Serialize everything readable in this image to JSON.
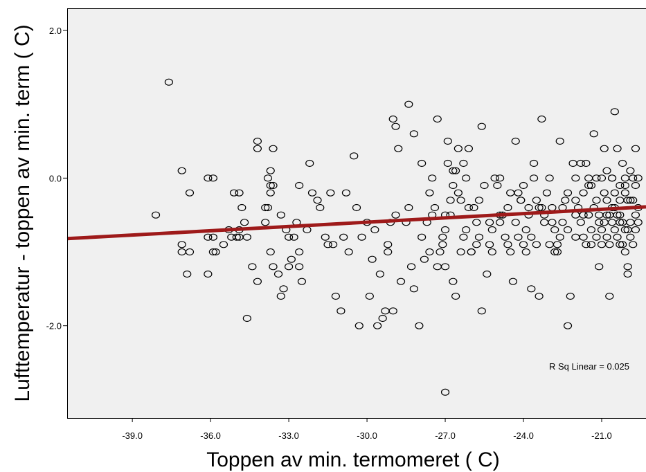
{
  "chart_data": {
    "type": "scatter",
    "xlabel": "Toppen av min. termomeret ( C)",
    "ylabel": "Lufttemperatur - toppen av min. term ( C)",
    "xlim": [
      -41.5,
      -19.3
    ],
    "ylim": [
      -3.25,
      2.3
    ],
    "x_ticks": [
      -39.0,
      -36.0,
      -33.0,
      -30.0,
      -27.0,
      -24.0,
      -21.0
    ],
    "y_ticks": [
      2.0,
      0.0,
      -2.0
    ],
    "x_tick_labels": [
      "-39.0",
      "-36.0",
      "-33.0",
      "-30.0",
      "-27.0",
      "-24.0",
      "-21.0"
    ],
    "y_tick_labels": [
      "2.0",
      "0.0",
      "-2.0"
    ],
    "annotation": "R Sq Linear = 0.025",
    "grid": false,
    "plot_background": "#f0f0f0",
    "marker_color": "#000000",
    "fit_line": {
      "color": "#9e1a1a",
      "x": [
        -41.5,
        -19.3
      ],
      "y": [
        -0.82,
        -0.39
      ]
    },
    "points": [
      [
        -38.1,
        -0.5
      ],
      [
        -37.6,
        1.3
      ],
      [
        -37.1,
        0.1
      ],
      [
        -37.1,
        -0.9
      ],
      [
        -37.1,
        -1.0
      ],
      [
        -36.9,
        -1.3
      ],
      [
        -36.8,
        -0.2
      ],
      [
        -36.8,
        -1.0
      ],
      [
        -36.1,
        0.0
      ],
      [
        -36.1,
        -0.8
      ],
      [
        -36.1,
        -1.3
      ],
      [
        -35.9,
        0.0
      ],
      [
        -35.9,
        -0.8
      ],
      [
        -35.9,
        -1.0
      ],
      [
        -35.8,
        -1.0
      ],
      [
        -35.5,
        -0.9
      ],
      [
        -35.3,
        -0.7
      ],
      [
        -35.2,
        -0.8
      ],
      [
        -35.1,
        -0.2
      ],
      [
        -35.0,
        -0.8
      ],
      [
        -34.9,
        -0.8
      ],
      [
        -34.9,
        -0.7
      ],
      [
        -34.9,
        -0.2
      ],
      [
        -34.8,
        -0.4
      ],
      [
        -34.7,
        -0.6
      ],
      [
        -34.6,
        -0.8
      ],
      [
        -34.6,
        -1.9
      ],
      [
        -34.4,
        -1.2
      ],
      [
        -34.2,
        0.5
      ],
      [
        -34.2,
        0.4
      ],
      [
        -34.2,
        -1.4
      ],
      [
        -33.9,
        -0.4
      ],
      [
        -33.9,
        -0.6
      ],
      [
        -33.8,
        0.0
      ],
      [
        -33.8,
        -0.4
      ],
      [
        -33.7,
        0.1
      ],
      [
        -33.7,
        -0.1
      ],
      [
        -33.7,
        -0.2
      ],
      [
        -33.7,
        -1.0
      ],
      [
        -33.6,
        0.4
      ],
      [
        -33.6,
        -0.1
      ],
      [
        -33.6,
        -1.2
      ],
      [
        -33.4,
        -1.3
      ],
      [
        -33.3,
        -1.6
      ],
      [
        -33.3,
        -0.5
      ],
      [
        -33.2,
        -1.5
      ],
      [
        -33.1,
        -0.7
      ],
      [
        -33.0,
        -0.8
      ],
      [
        -33.0,
        -1.2
      ],
      [
        -32.9,
        -1.1
      ],
      [
        -32.8,
        -0.8
      ],
      [
        -32.7,
        -0.6
      ],
      [
        -32.6,
        -0.1
      ],
      [
        -32.6,
        -1.0
      ],
      [
        -32.6,
        -1.2
      ],
      [
        -32.5,
        -1.4
      ],
      [
        -32.3,
        -0.7
      ],
      [
        -32.2,
        0.2
      ],
      [
        -32.1,
        -0.2
      ],
      [
        -31.9,
        -0.3
      ],
      [
        -31.8,
        -0.4
      ],
      [
        -31.6,
        -0.8
      ],
      [
        -31.5,
        -0.9
      ],
      [
        -31.4,
        -0.2
      ],
      [
        -31.3,
        -0.9
      ],
      [
        -31.2,
        -1.6
      ],
      [
        -31.0,
        -1.8
      ],
      [
        -30.9,
        -0.8
      ],
      [
        -30.8,
        -0.2
      ],
      [
        -30.7,
        -1.0
      ],
      [
        -30.5,
        0.3
      ],
      [
        -30.4,
        -0.4
      ],
      [
        -30.3,
        -2.0
      ],
      [
        -30.2,
        -0.8
      ],
      [
        -30.0,
        -0.6
      ],
      [
        -29.9,
        -1.6
      ],
      [
        -29.8,
        -1.1
      ],
      [
        -29.7,
        -0.7
      ],
      [
        -29.6,
        -2.0
      ],
      [
        -29.5,
        -1.3
      ],
      [
        -29.4,
        -1.9
      ],
      [
        -29.3,
        -1.8
      ],
      [
        -29.2,
        -1.0
      ],
      [
        -29.2,
        -0.9
      ],
      [
        -29.1,
        -0.6
      ],
      [
        -29.0,
        -1.8
      ],
      [
        -29.0,
        0.8
      ],
      [
        -28.9,
        0.7
      ],
      [
        -28.9,
        -0.5
      ],
      [
        -28.8,
        0.4
      ],
      [
        -28.7,
        -1.4
      ],
      [
        -28.5,
        -0.6
      ],
      [
        -28.4,
        -0.4
      ],
      [
        -28.3,
        -1.2
      ],
      [
        -28.2,
        -1.5
      ],
      [
        -28.0,
        -2.0
      ],
      [
        -27.9,
        -0.8
      ],
      [
        -27.8,
        -1.1
      ],
      [
        -27.7,
        -0.6
      ],
      [
        -27.6,
        -0.2
      ],
      [
        -27.6,
        -1.0
      ],
      [
        -27.5,
        0.0
      ],
      [
        -27.4,
        -0.4
      ],
      [
        -27.3,
        -1.2
      ],
      [
        -27.2,
        -1.0
      ],
      [
        -27.1,
        -0.9
      ],
      [
        -27.1,
        -0.8
      ],
      [
        -27.0,
        -0.5
      ],
      [
        -27.0,
        -0.7
      ],
      [
        -26.9,
        0.2
      ],
      [
        -26.8,
        -0.3
      ],
      [
        -26.7,
        0.1
      ],
      [
        -26.7,
        -0.1
      ],
      [
        -26.6,
        0.1
      ],
      [
        -26.5,
        -0.2
      ],
      [
        -26.4,
        -0.3
      ],
      [
        -26.3,
        0.2
      ],
      [
        -26.2,
        -0.7
      ],
      [
        -26.0,
        -1.0
      ],
      [
        -25.9,
        -0.4
      ],
      [
        -25.8,
        -0.6
      ],
      [
        -28.4,
        1.0
      ],
      [
        -28.2,
        0.6
      ],
      [
        -27.9,
        0.2
      ],
      [
        -27.5,
        -0.5
      ],
      [
        -27.3,
        0.8
      ],
      [
        -27.0,
        -1.2
      ],
      [
        -26.9,
        0.5
      ],
      [
        -26.7,
        -1.4
      ],
      [
        -26.6,
        -1.6
      ],
      [
        -26.5,
        0.4
      ],
      [
        -26.4,
        -1.0
      ],
      [
        -26.3,
        -0.8
      ],
      [
        -26.2,
        0.0
      ],
      [
        -26.1,
        0.4
      ],
      [
        -26.0,
        -1.0
      ],
      [
        -25.8,
        -0.9
      ],
      [
        -25.7,
        -0.8
      ],
      [
        -25.6,
        0.7
      ],
      [
        -25.6,
        -1.8
      ],
      [
        -25.4,
        -1.3
      ],
      [
        -25.3,
        -0.6
      ],
      [
        -25.2,
        -0.7
      ],
      [
        -25.1,
        0.0
      ],
      [
        -25.0,
        -0.1
      ],
      [
        -24.9,
        0.0
      ],
      [
        -24.8,
        -0.5
      ],
      [
        -24.7,
        -0.8
      ],
      [
        -24.6,
        -0.9
      ],
      [
        -24.5,
        -1.0
      ],
      [
        -24.4,
        -1.4
      ],
      [
        -24.3,
        0.5
      ],
      [
        -24.2,
        -0.2
      ],
      [
        -24.1,
        -0.3
      ],
      [
        -24.0,
        -0.1
      ],
      [
        -24.0,
        -0.9
      ],
      [
        -23.9,
        -1.0
      ],
      [
        -23.8,
        -0.4
      ],
      [
        -23.7,
        -0.8
      ],
      [
        -23.7,
        -1.5
      ],
      [
        -23.6,
        0.2
      ],
      [
        -23.5,
        -0.3
      ],
      [
        -23.4,
        -0.4
      ],
      [
        -23.4,
        -1.6
      ],
      [
        -23.3,
        0.8
      ],
      [
        -23.2,
        -0.5
      ],
      [
        -23.1,
        -0.2
      ],
      [
        -23.0,
        0.0
      ],
      [
        -22.9,
        -0.6
      ],
      [
        -22.8,
        -0.7
      ],
      [
        -22.7,
        -0.9
      ],
      [
        -22.7,
        -1.0
      ],
      [
        -22.6,
        0.5
      ],
      [
        -22.5,
        -0.4
      ],
      [
        -22.4,
        -0.3
      ],
      [
        -22.3,
        -2.0
      ],
      [
        -22.2,
        -1.6
      ],
      [
        -22.1,
        0.2
      ],
      [
        -22.0,
        0.0
      ],
      [
        -22.0,
        -0.5
      ],
      [
        -21.9,
        -0.4
      ],
      [
        -21.8,
        -0.6
      ],
      [
        -21.7,
        -0.8
      ],
      [
        -21.6,
        -0.9
      ],
      [
        -21.5,
        0.0
      ],
      [
        -21.4,
        -0.1
      ],
      [
        -21.4,
        -0.7
      ],
      [
        -21.3,
        0.6
      ],
      [
        -21.2,
        -0.3
      ],
      [
        -21.1,
        -1.2
      ],
      [
        -21.0,
        0.0
      ],
      [
        -21.0,
        -0.9
      ],
      [
        -20.9,
        -0.2
      ],
      [
        -20.8,
        0.1
      ],
      [
        -20.7,
        -0.5
      ],
      [
        -20.6,
        -0.6
      ],
      [
        -20.5,
        0.9
      ],
      [
        -20.5,
        -0.4
      ],
      [
        -20.4,
        -0.8
      ],
      [
        -20.3,
        -0.9
      ],
      [
        -20.2,
        0.2
      ],
      [
        -20.1,
        -0.1
      ],
      [
        -20.0,
        -0.7
      ],
      [
        -20.0,
        -1.3
      ],
      [
        -19.9,
        -0.3
      ],
      [
        -19.8,
        0.0
      ],
      [
        -19.7,
        -0.5
      ],
      [
        -19.6,
        -0.6
      ],
      [
        -21.8,
        0.2
      ],
      [
        -21.6,
        0.2
      ],
      [
        -21.5,
        -0.1
      ],
      [
        -21.3,
        -0.4
      ],
      [
        -21.2,
        0.0
      ],
      [
        -21.1,
        -0.5
      ],
      [
        -20.9,
        -0.6
      ],
      [
        -20.8,
        -0.8
      ],
      [
        -20.7,
        -0.9
      ],
      [
        -20.6,
        0.0
      ],
      [
        -20.5,
        -0.2
      ],
      [
        -20.4,
        0.4
      ],
      [
        -20.3,
        -0.1
      ],
      [
        -20.2,
        -0.9
      ],
      [
        -20.1,
        0.0
      ],
      [
        -20.0,
        -0.3
      ],
      [
        -19.9,
        -0.8
      ],
      [
        -19.8,
        -0.9
      ],
      [
        -19.7,
        -0.1
      ],
      [
        -19.6,
        -0.4
      ],
      [
        -20.9,
        0.4
      ],
      [
        -20.7,
        -1.6
      ],
      [
        -20.6,
        0.0
      ],
      [
        -20.4,
        -0.5
      ],
      [
        -20.3,
        -0.3
      ],
      [
        -20.2,
        -0.6
      ],
      [
        -20.1,
        -1.0
      ],
      [
        -20.0,
        -1.2
      ],
      [
        -19.9,
        0.1
      ],
      [
        -19.7,
        0.4
      ],
      [
        -27.0,
        -2.9
      ],
      [
        -25.5,
        -0.1
      ],
      [
        -25.2,
        -1.0
      ],
      [
        -24.9,
        -0.5
      ],
      [
        -24.6,
        -0.4
      ],
      [
        -24.3,
        -0.6
      ],
      [
        -24.1,
        -0.3
      ],
      [
        -23.9,
        -0.7
      ],
      [
        -23.6,
        0.0
      ],
      [
        -23.3,
        -0.4
      ],
      [
        -23.0,
        -0.9
      ],
      [
        -22.8,
        -1.0
      ],
      [
        -22.5,
        -0.6
      ],
      [
        -22.3,
        -0.2
      ],
      [
        -22.0,
        -0.8
      ],
      [
        -21.7,
        -0.2
      ],
      [
        -21.5,
        -0.5
      ],
      [
        -21.2,
        -0.8
      ],
      [
        -21.0,
        -0.7
      ],
      [
        -20.8,
        -0.3
      ],
      [
        -20.5,
        -0.7
      ],
      [
        -20.3,
        -0.6
      ],
      [
        -20.1,
        -0.2
      ],
      [
        -19.8,
        -0.3
      ],
      [
        -19.6,
        0.0
      ],
      [
        -26.8,
        -0.5
      ],
      [
        -26.1,
        -0.4
      ],
      [
        -25.7,
        -0.3
      ],
      [
        -25.3,
        -0.9
      ],
      [
        -24.9,
        -0.6
      ],
      [
        -24.5,
        -0.2
      ],
      [
        -24.2,
        -0.8
      ],
      [
        -23.8,
        -0.5
      ],
      [
        -23.5,
        -0.9
      ],
      [
        -23.2,
        -0.6
      ],
      [
        -22.9,
        -0.4
      ],
      [
        -22.6,
        -0.8
      ],
      [
        -22.3,
        -0.7
      ],
      [
        -22.0,
        -0.3
      ],
      [
        -21.7,
        -0.5
      ],
      [
        -21.4,
        -0.9
      ],
      [
        -21.1,
        -0.6
      ],
      [
        -20.8,
        -0.5
      ],
      [
        -20.6,
        -0.4
      ],
      [
        -20.3,
        -0.5
      ],
      [
        -20.1,
        -0.7
      ],
      [
        -19.9,
        -0.6
      ],
      [
        -19.7,
        -0.7
      ]
    ]
  }
}
